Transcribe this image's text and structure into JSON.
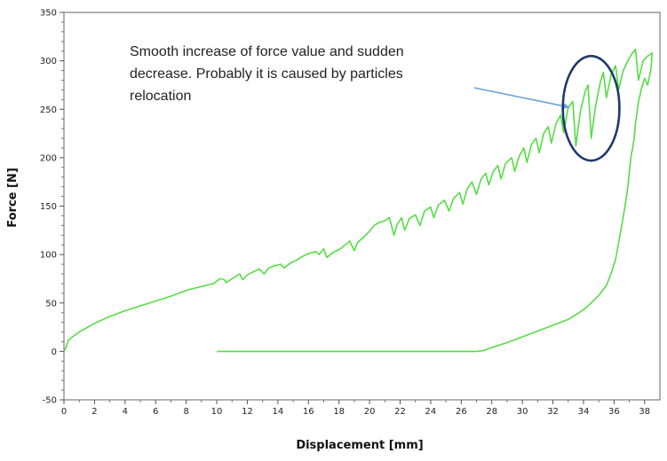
{
  "chart_data": {
    "type": "line",
    "title": "",
    "xlabel": "Displacement [mm]",
    "ylabel": "Force [N]",
    "xlim": [
      0,
      39
    ],
    "ylim": [
      -50,
      350
    ],
    "xticks": [
      0,
      2,
      4,
      6,
      8,
      10,
      12,
      14,
      16,
      18,
      20,
      22,
      24,
      26,
      28,
      30,
      32,
      34,
      36,
      38
    ],
    "yticks": [
      -50,
      0,
      50,
      100,
      150,
      200,
      250,
      300,
      350
    ],
    "grid": false,
    "line_color": "#55dd44",
    "annotation": {
      "lines": [
        "Smooth increase of force value and sudden",
        "decrease. Probably it is caused by particles",
        "relocation"
      ],
      "arrow_to": [
        33.1,
        252
      ],
      "ellipse_center": [
        34.5,
        251
      ],
      "ellipse_radius": [
        1.85,
        54
      ],
      "arrow_color": "#6a9fd6",
      "ellipse_color": "#1f3a6b"
    },
    "series": [
      {
        "values": [
          [
            0,
            0
          ],
          [
            0.1,
            3
          ],
          [
            0.3,
            12
          ],
          [
            1,
            20
          ],
          [
            2,
            29
          ],
          [
            3,
            36
          ],
          [
            4,
            42
          ],
          [
            5,
            47
          ],
          [
            6,
            52
          ],
          [
            7,
            57
          ],
          [
            8,
            63
          ],
          [
            9,
            67
          ],
          [
            9.5,
            69
          ],
          [
            9.8,
            70
          ],
          [
            10.2,
            75
          ],
          [
            10.5,
            74
          ],
          [
            10.6,
            71
          ],
          [
            11,
            75
          ],
          [
            11.5,
            80
          ],
          [
            11.7,
            74
          ],
          [
            12,
            79
          ],
          [
            12.5,
            83
          ],
          [
            12.8,
            85
          ],
          [
            13.1,
            80
          ],
          [
            13.4,
            86
          ],
          [
            13.7,
            88
          ],
          [
            14.2,
            90
          ],
          [
            14.4,
            86
          ],
          [
            14.8,
            91
          ],
          [
            15.2,
            94
          ],
          [
            15.6,
            98
          ],
          [
            16,
            101
          ],
          [
            16.5,
            103
          ],
          [
            16.7,
            100
          ],
          [
            17,
            106
          ],
          [
            17.2,
            97
          ],
          [
            17.6,
            102
          ],
          [
            18.1,
            106
          ],
          [
            18.4,
            110
          ],
          [
            18.7,
            114
          ],
          [
            19,
            104
          ],
          [
            19.2,
            112
          ],
          [
            19.6,
            118
          ],
          [
            20,
            124
          ],
          [
            20.3,
            130
          ],
          [
            20.6,
            133
          ],
          [
            21,
            135
          ],
          [
            21.3,
            138
          ],
          [
            21.6,
            120
          ],
          [
            21.8,
            131
          ],
          [
            22.1,
            138
          ],
          [
            22.3,
            125
          ],
          [
            22.6,
            137
          ],
          [
            23,
            141
          ],
          [
            23.3,
            130
          ],
          [
            23.6,
            145
          ],
          [
            24,
            149
          ],
          [
            24.2,
            138
          ],
          [
            24.5,
            151
          ],
          [
            24.9,
            156
          ],
          [
            25.2,
            145
          ],
          [
            25.5,
            158
          ],
          [
            25.9,
            164
          ],
          [
            26.1,
            152
          ],
          [
            26.4,
            168
          ],
          [
            26.7,
            175
          ],
          [
            27,
            162
          ],
          [
            27.3,
            178
          ],
          [
            27.6,
            184
          ],
          [
            27.8,
            172
          ],
          [
            28.1,
            186
          ],
          [
            28.4,
            192
          ],
          [
            28.6,
            178
          ],
          [
            28.9,
            194
          ],
          [
            29.3,
            200
          ],
          [
            29.5,
            186
          ],
          [
            29.8,
            202
          ],
          [
            30.1,
            210
          ],
          [
            30.3,
            195
          ],
          [
            30.6,
            214
          ],
          [
            30.9,
            220
          ],
          [
            31.1,
            205
          ],
          [
            31.4,
            225
          ],
          [
            31.7,
            232
          ],
          [
            31.9,
            215
          ],
          [
            32.2,
            235
          ],
          [
            32.5,
            244
          ],
          [
            32.7,
            226
          ],
          [
            33,
            252
          ],
          [
            33.3,
            258
          ],
          [
            33.5,
            212
          ],
          [
            33.8,
            248
          ],
          [
            34.1,
            268
          ],
          [
            34.3,
            275
          ],
          [
            34.5,
            220
          ],
          [
            34.8,
            254
          ],
          [
            35.1,
            278
          ],
          [
            35.3,
            288
          ],
          [
            35.5,
            262
          ],
          [
            35.8,
            285
          ],
          [
            36.1,
            295
          ],
          [
            36.3,
            270
          ],
          [
            36.6,
            290
          ],
          [
            36.9,
            300
          ],
          [
            37.2,
            308
          ],
          [
            37.4,
            312
          ],
          [
            37.6,
            280
          ],
          [
            37.9,
            300
          ],
          [
            38.2,
            305
          ],
          [
            38.5,
            308
          ],
          [
            38.4,
            290
          ],
          [
            38.2,
            275
          ],
          [
            38,
            282
          ],
          [
            37.8,
            272
          ],
          [
            37.6,
            258
          ],
          [
            37.4,
            235
          ],
          [
            37.3,
            218
          ],
          [
            37.1,
            200
          ],
          [
            36.9,
            170
          ],
          [
            36.7,
            148
          ],
          [
            36.5,
            130
          ],
          [
            36.3,
            112
          ],
          [
            36.1,
            95
          ],
          [
            35.8,
            80
          ],
          [
            35.5,
            68
          ],
          [
            35,
            58
          ],
          [
            34.5,
            50
          ],
          [
            34,
            43
          ],
          [
            33.5,
            38
          ],
          [
            33,
            33
          ],
          [
            32,
            27
          ],
          [
            31,
            21
          ],
          [
            30,
            15
          ],
          [
            29,
            9
          ],
          [
            28,
            4
          ],
          [
            27.5,
            1
          ],
          [
            27,
            0
          ],
          [
            26,
            0
          ],
          [
            20,
            0
          ],
          [
            15,
            0
          ],
          [
            10,
            0
          ]
        ]
      }
    ]
  }
}
